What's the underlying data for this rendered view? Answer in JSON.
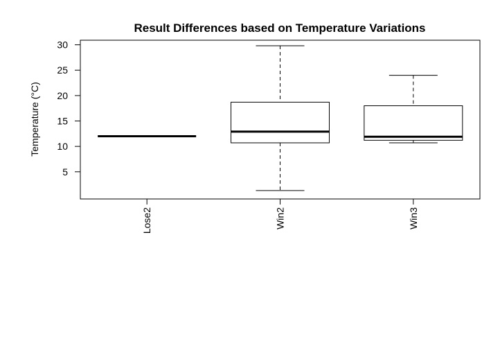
{
  "chart_data": {
    "type": "boxplot",
    "title": "Result Differences based on Temperature Variations",
    "xlabel": "",
    "ylabel": "Temperature (°C)",
    "categories": [
      "Lose2",
      "Win2",
      "Win3"
    ],
    "boxes": [
      {
        "category": "Lose2",
        "min": 12.0,
        "q1": 12.0,
        "median": 12.0,
        "q3": 12.0,
        "max": 12.0
      },
      {
        "category": "Win2",
        "min": 1.3,
        "q1": 10.7,
        "median": 12.9,
        "q3": 18.7,
        "max": 29.8
      },
      {
        "category": "Win3",
        "min": 10.7,
        "q1": 11.2,
        "median": 11.9,
        "q3": 18.0,
        "max": 24.0
      }
    ],
    "y_ticks": [
      5,
      10,
      15,
      20,
      25,
      30
    ],
    "ylim": [
      -0.35,
      30.9
    ],
    "grid": false,
    "legend": "none"
  }
}
